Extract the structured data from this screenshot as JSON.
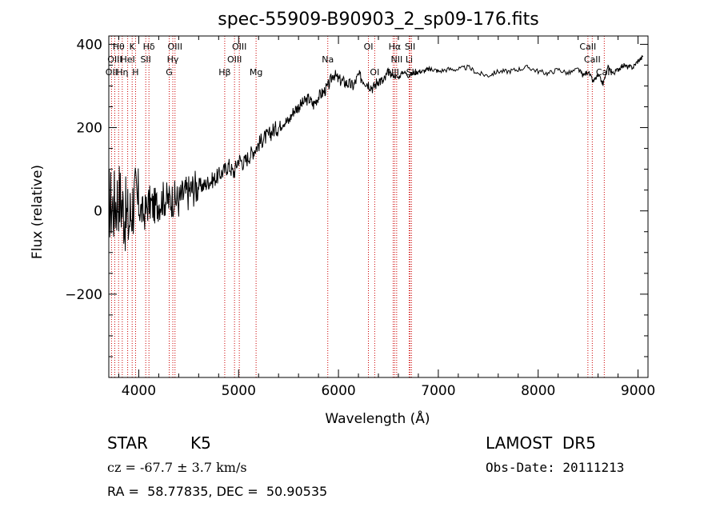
{
  "chart_data": {
    "type": "line",
    "title": "spec-55909-B90903_2_sp09-176.fits",
    "xlabel": "Wavelength (Å)",
    "ylabel": "Flux (relative)",
    "xlim": [
      3700,
      9100
    ],
    "ylim": [
      -400,
      420
    ],
    "x_ticks": [
      4000,
      5000,
      6000,
      7000,
      8000,
      9000
    ],
    "y_ticks": [
      -200,
      0,
      200,
      400
    ],
    "grid": false,
    "line_color": "#000000",
    "marker_color": "#cc0000",
    "series": [
      {
        "x": [
          3700,
          3750,
          3800,
          3850,
          3900,
          3950,
          4000,
          4050,
          4100,
          4150,
          4200,
          4250,
          4300,
          4350,
          4400,
          4450,
          4500,
          4550,
          4600,
          4650,
          4700,
          4750,
          4800,
          4850,
          4900,
          4950,
          5000,
          5050,
          5100,
          5150,
          5200,
          5250,
          5300,
          5350,
          5400,
          5450,
          5500,
          5550,
          5600,
          5650,
          5700,
          5750,
          5800,
          5850,
          5900,
          5950,
          6000,
          6050,
          6100,
          6150,
          6200,
          6250,
          6300,
          6350,
          6400,
          6450,
          6500,
          6550,
          6600,
          6650,
          6700,
          6750,
          6800,
          6850,
          6900,
          6950,
          7000,
          7100,
          7200,
          7300,
          7400,
          7500,
          7600,
          7700,
          7800,
          7900,
          8000,
          8100,
          8200,
          8300,
          8400,
          8450,
          8500,
          8550,
          8600,
          8650,
          8700,
          8750,
          8800,
          8850,
          8900,
          8950,
          9000,
          9050
        ],
        "y": [
          20,
          10,
          40,
          0,
          -30,
          30,
          10,
          -10,
          20,
          10,
          20,
          30,
          25,
          30,
          25,
          40,
          45,
          55,
          60,
          60,
          70,
          75,
          85,
          95,
          110,
          90,
          125,
          115,
          130,
          145,
          160,
          175,
          180,
          195,
          200,
          215,
          215,
          240,
          250,
          260,
          270,
          255,
          275,
          285,
          300,
          330,
          315,
          310,
          305,
          300,
          325,
          315,
          305,
          295,
          315,
          310,
          330,
          325,
          320,
          335,
          325,
          330,
          335,
          335,
          340,
          340,
          335,
          340,
          340,
          345,
          330,
          325,
          335,
          335,
          340,
          345,
          335,
          330,
          340,
          330,
          340,
          325,
          335,
          310,
          325,
          305,
          345,
          330,
          340,
          350,
          345,
          345,
          360,
          370
        ]
      }
    ],
    "spectral_lines": [
      {
        "label": "OII",
        "wavelength": 3727,
        "row": 2
      },
      {
        "label": "Hθ",
        "wavelength": 3798,
        "row": 0
      },
      {
        "label": "OIII",
        "wavelength": 3760,
        "row": 1
      },
      {
        "label": "Hη",
        "wavelength": 3835,
        "row": 2
      },
      {
        "label": "HeI",
        "wavelength": 3889,
        "row": 1
      },
      {
        "label": "K",
        "wavelength": 3934,
        "row": 0
      },
      {
        "label": "H",
        "wavelength": 3968,
        "row": 2
      },
      {
        "label": "SII",
        "wavelength": 4070,
        "row": 1
      },
      {
        "label": "Hδ",
        "wavelength": 4102,
        "row": 0
      },
      {
        "label": "G",
        "wavelength": 4305,
        "row": 2
      },
      {
        "label": "Hγ",
        "wavelength": 4341,
        "row": 1
      },
      {
        "label": "OIII",
        "wavelength": 4363,
        "row": 0
      },
      {
        "label": "Hβ",
        "wavelength": 4861,
        "row": 2
      },
      {
        "label": "OIII",
        "wavelength": 4959,
        "row": 1
      },
      {
        "label": "OIII",
        "wavelength": 5007,
        "row": 0
      },
      {
        "label": "Mg",
        "wavelength": 5175,
        "row": 2
      },
      {
        "label": "Na",
        "wavelength": 5893,
        "row": 1
      },
      {
        "label": "OI",
        "wavelength": 6300,
        "row": 0
      },
      {
        "label": "OI",
        "wavelength": 6363,
        "row": 2
      },
      {
        "label": "NII",
        "wavelength": 6548,
        "row": 2
      },
      {
        "label": "Hα",
        "wavelength": 6563,
        "row": 0
      },
      {
        "label": "NII",
        "wavelength": 6583,
        "row": 1
      },
      {
        "label": "Li",
        "wavelength": 6708,
        "row": 1
      },
      {
        "label": "SII",
        "wavelength": 6717,
        "row": 0
      },
      {
        "label": "SII",
        "wavelength": 6731,
        "row": 2
      },
      {
        "label": "CaII",
        "wavelength": 8498,
        "row": 0
      },
      {
        "label": "CaII",
        "wavelength": 8542,
        "row": 1
      },
      {
        "label": "CaII",
        "wavelength": 8662,
        "row": 2
      }
    ]
  },
  "info": {
    "class": "STAR",
    "subclass": "K5",
    "cz": "cz = -67.7 ± 3.7 km/s",
    "coords": "RA =  58.77835, DEC =  50.90535",
    "survey": "LAMOST  DR5",
    "obs_date": "Obs-Date: 20111213"
  }
}
